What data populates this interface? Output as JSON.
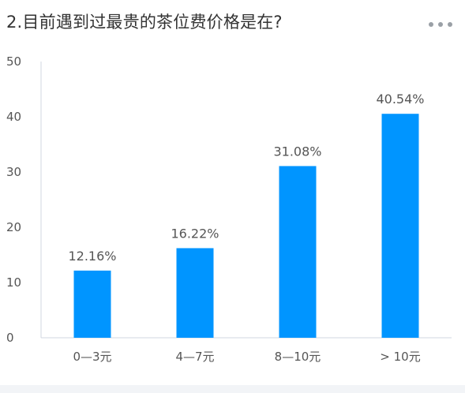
{
  "title": "2.目前遇到过最贵的茶位费价格是在?",
  "menu": {
    "icon": "more-horizontal-icon"
  },
  "chart_data": {
    "type": "bar",
    "title": "2.目前遇到过最贵的茶位费价格是在?",
    "categories": [
      "0—3元",
      "4—7元",
      "8—10元",
      "> 10元"
    ],
    "values": [
      12.16,
      16.22,
      31.08,
      40.54
    ],
    "data_labels": [
      "12.16%",
      "16.22%",
      "31.08%",
      "40.54%"
    ],
    "yticks": [
      "0",
      "10",
      "20",
      "30",
      "40",
      "50"
    ],
    "ylim": [
      0,
      50
    ],
    "xlabel": "",
    "ylabel": "",
    "grid": false,
    "bar_color": "#0095ff",
    "axis_color": "#d0d7e0"
  }
}
